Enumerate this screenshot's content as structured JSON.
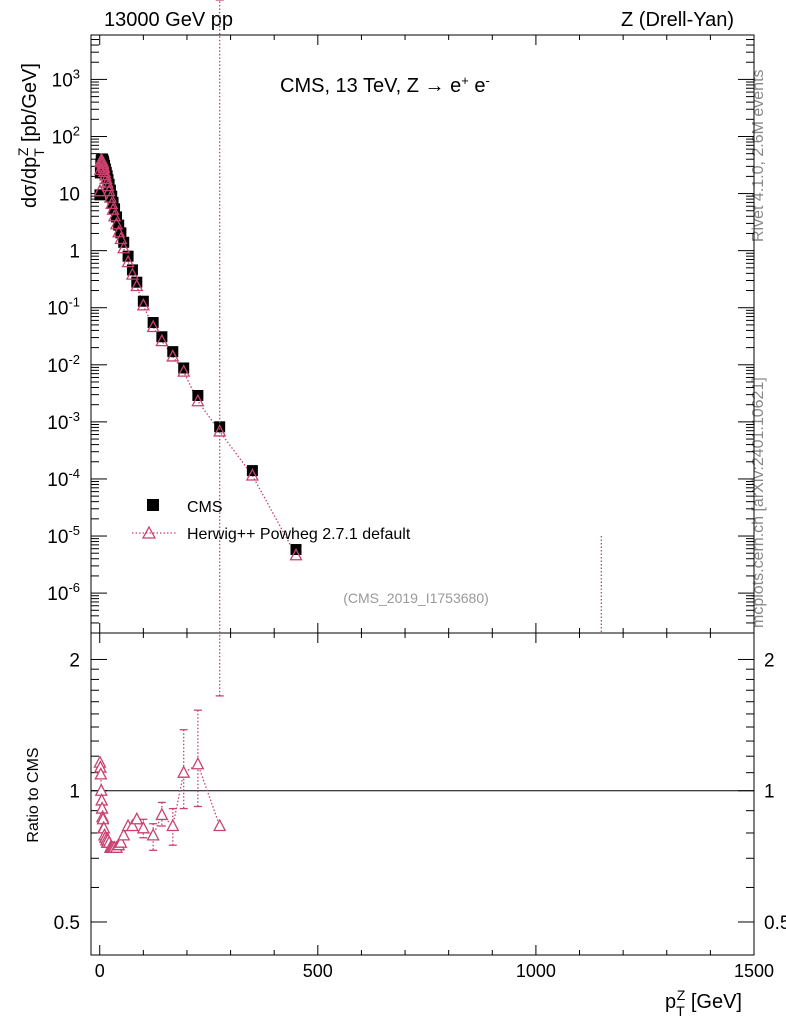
{
  "header": {
    "left": "13000 GeV pp",
    "right": "Z (Drell-Yan)"
  },
  "side_labels": {
    "rivet": "Rivet 4.1.0,  2.6M events",
    "mcplots": "mcplots.cern.ch [arXiv:2401.10621]"
  },
  "plot_title": {
    "main": "CMS, 13 TeV, Z →  e",
    "sup1": "+",
    "mid": " e",
    "sup2": "-"
  },
  "analysis_label": "(CMS_2019_I1753680)",
  "ylabel_top": {
    "pre": "dσ/dp",
    "sub": "T",
    "sup": "Z",
    "post": " [pb/GeV]"
  },
  "ylabel_bottom": "Ratio to CMS",
  "xlabel": {
    "pre": "p",
    "sub": "T",
    "sup": "Z",
    "post": " [GeV]"
  },
  "legend": [
    {
      "label": "CMS",
      "marker": "filled-square",
      "color": "#000000"
    },
    {
      "label": "Herwig++ Powheg 2.7.1 default",
      "marker": "open-triangle",
      "color": "#c8426e"
    }
  ],
  "colors": {
    "data": "#000000",
    "mc": "#c8426e",
    "side_text": "#888888",
    "analysis": "#999999"
  },
  "chart_data": {
    "type": "scatter",
    "x_axis": {
      "range": [
        -20,
        1500
      ],
      "ticks": [
        0,
        500,
        1000,
        1500
      ],
      "tick_labels": [
        "0",
        "500",
        "1000",
        "1500"
      ]
    },
    "main_panel": {
      "yscale": "log",
      "ylim": [
        2e-07,
        6000
      ],
      "major_ticks": [
        1e-06,
        1e-05,
        0.0001,
        0.001,
        0.01,
        0.1,
        1,
        10,
        100,
        1000
      ],
      "tick_labels": [
        {
          "base": "10",
          "exp": "-6"
        },
        {
          "base": "10",
          "exp": "-5"
        },
        {
          "base": "10",
          "exp": "-4"
        },
        {
          "base": "10",
          "exp": "-3"
        },
        {
          "base": "10",
          "exp": "-2"
        },
        {
          "base": "10",
          "exp": "-1"
        },
        {
          "base": "1",
          "exp": ""
        },
        {
          "base": "10",
          "exp": ""
        },
        {
          "base": "10",
          "exp": "2"
        },
        {
          "base": "10",
          "exp": "3"
        }
      ]
    },
    "ratio_panel": {
      "yscale": "log",
      "ylim": [
        0.42,
        2.3
      ],
      "ticks": [
        0.5,
        1,
        2
      ],
      "tick_labels": [
        "0.5",
        "1",
        "2"
      ],
      "reference_line": 1
    },
    "series": [
      {
        "name": "CMS",
        "x": [
          0.5,
          1.5,
          2.5,
          3.5,
          4.5,
          5.5,
          6.5,
          7.5,
          8.5,
          9.5,
          11,
          13,
          15,
          17,
          19,
          21.5,
          24.5,
          27.5,
          30.5,
          34,
          38.5,
          43.5,
          48.5,
          55,
          65,
          75,
          85,
          100,
          122.5,
          142.5,
          167.5,
          192.5,
          225,
          275,
          350,
          450,
          650,
          1150
        ],
        "y": [
          9.5,
          23,
          33,
          38,
          40,
          40.5,
          40,
          38.5,
          36.5,
          34,
          31,
          27,
          23.5,
          20.5,
          17.5,
          14.5,
          11.5,
          9,
          7,
          5.4,
          3.9,
          2.8,
          2.05,
          1.4,
          0.8,
          0.46,
          0.28,
          0.13,
          0.055,
          0.031,
          0.017,
          0.0088,
          0.0029,
          0.00082,
          0.00014,
          5.8e-06,
          0.0,
          0.0
        ]
      },
      {
        "name": "Herwig++ Powheg 2.7.1 default",
        "x": [
          0.5,
          1.5,
          2.5,
          3.5,
          4.5,
          5.5,
          6.5,
          7.5,
          8.5,
          9.5,
          11,
          13,
          15,
          17,
          19,
          21.5,
          24.5,
          27.5,
          30.5,
          34,
          38.5,
          43.5,
          48.5,
          55,
          65,
          75,
          85,
          100,
          122.5,
          142.5,
          167.5,
          192.5,
          225,
          275,
          350,
          450,
          650,
          1150
        ],
        "y": [
          11,
          26,
          36,
          38,
          38,
          37,
          35,
          33,
          30,
          28,
          24,
          21,
          18,
          15.5,
          13.5,
          11,
          8.5,
          6.6,
          5.2,
          4.0,
          2.9,
          2.1,
          1.6,
          1.1,
          0.63,
          0.38,
          0.24,
          0.11,
          0.046,
          0.026,
          0.014,
          0.0076,
          0.0023,
          0.00068,
          0.000115,
          4.6e-06,
          0.0,
          0.0
        ],
        "ratio": [
          1.16,
          1.13,
          1.09,
          1.0,
          0.95,
          0.91,
          0.87,
          0.86,
          0.82,
          0.82,
          0.79,
          0.78,
          0.77,
          0.76,
          0.77,
          0.76,
          0.74,
          0.74,
          0.74,
          0.74,
          0.74,
          0.75,
          0.76,
          0.79,
          0.83,
          0.83,
          0.86,
          0.82,
          0.79,
          0.88,
          0.83,
          1.1,
          1.15,
          0.83,
          0.0,
          0.0,
          0.0,
          0.0
        ],
        "ratio_err_up": [
          0.02,
          0.02,
          0.02,
          0.02,
          0.02,
          0.02,
          0.02,
          0.02,
          0.02,
          0.02,
          0.02,
          0.02,
          0.02,
          0.02,
          0.02,
          0.02,
          0.02,
          0.02,
          0.02,
          0.02,
          0.02,
          0.02,
          0.02,
          0.02,
          0.02,
          0.02,
          0.03,
          0.04,
          0.05,
          0.06,
          0.08,
          0.28,
          0.38,
          0.82,
          0.0,
          0.0,
          0.0,
          0.0
        ],
        "ratio_err_down": [
          0.02,
          0.02,
          0.02,
          0.02,
          0.02,
          0.02,
          0.02,
          0.02,
          0.02,
          0.02,
          0.02,
          0.02,
          0.02,
          0.02,
          0.02,
          0.02,
          0.02,
          0.02,
          0.02,
          0.02,
          0.02,
          0.02,
          0.02,
          0.02,
          0.02,
          0.02,
          0.03,
          0.04,
          0.06,
          0.05,
          0.08,
          0.19,
          0.23,
          0.83,
          0.0,
          0.0,
          0.0,
          0.0
        ]
      }
    ]
  }
}
